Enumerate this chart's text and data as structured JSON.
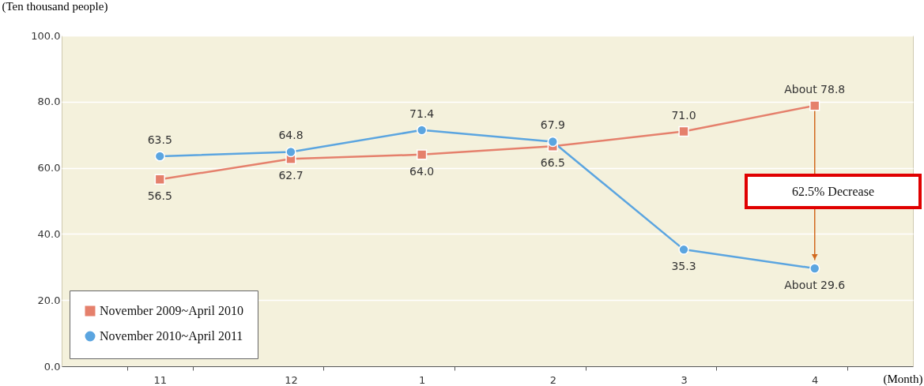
{
  "chart_data": {
    "type": "line",
    "xlabel": "(Month)",
    "ylabel": "(Ten thousand people)",
    "categories": [
      "11",
      "12",
      "1",
      "2",
      "3",
      "4"
    ],
    "series": [
      {
        "name": "November 2009~April 2010",
        "color": "#e5806c",
        "marker": "square",
        "values": [
          56.5,
          62.7,
          64.0,
          66.5,
          71.0,
          78.8
        ],
        "value_labels": [
          "56.5",
          "62.7",
          "64.0",
          "66.5",
          "71.0",
          "About 78.8"
        ]
      },
      {
        "name": "November 2010~April 2011",
        "color": "#5ba5e0",
        "marker": "circle",
        "values": [
          63.5,
          64.8,
          71.4,
          67.9,
          35.3,
          29.6
        ],
        "value_labels": [
          "63.5",
          "64.8",
          "71.4",
          "67.9",
          "35.3",
          "About 29.6"
        ]
      }
    ],
    "ylim": [
      0,
      100
    ],
    "yticks": [
      {
        "value": 0,
        "label": "0.0"
      },
      {
        "value": 20,
        "label": "20.0"
      },
      {
        "value": 40,
        "label": "40.0"
      },
      {
        "value": 60,
        "label": "60.0"
      },
      {
        "value": 80,
        "label": "80.0"
      },
      {
        "value": 100,
        "label": "100.0"
      }
    ],
    "grid": "y",
    "legend": "bottom left",
    "annotations": [
      "62.5% Decrease"
    ]
  }
}
